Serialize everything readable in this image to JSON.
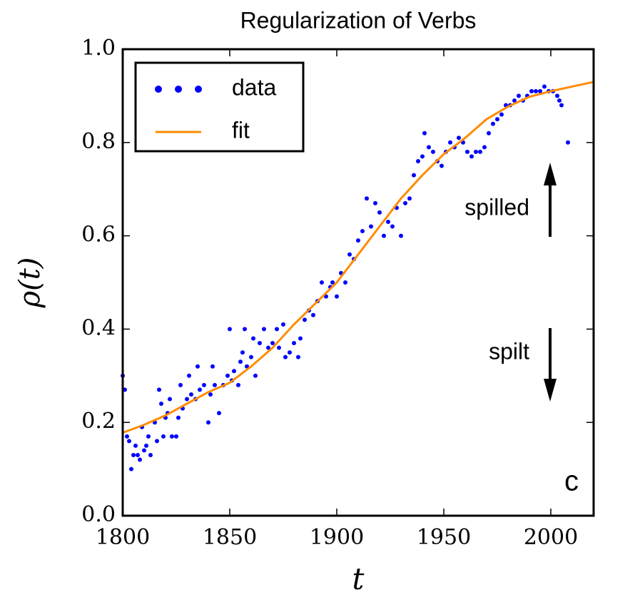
{
  "chart_data": {
    "type": "scatter",
    "title": "Regularization of Verbs",
    "x_label": "t",
    "y_label": "ρ(t)",
    "xlim": [
      1800,
      2020
    ],
    "ylim": [
      0,
      1
    ],
    "xticks": [
      1800,
      1850,
      1900,
      1950,
      2000
    ],
    "yticks": [
      {
        "value": 0,
        "label": "0.0"
      },
      0.2,
      0.4,
      0.6,
      0.8,
      {
        "value": 1,
        "label": "1.0"
      }
    ],
    "legend": "upper left",
    "series": [
      {
        "name": "data",
        "kind": "scatter",
        "color": "#0000ff",
        "x": [
          1800,
          1801,
          1802,
          1803,
          1804,
          1805,
          1806,
          1807,
          1808,
          1809,
          1810,
          1811,
          1812,
          1813,
          1815,
          1816,
          1817,
          1818,
          1819,
          1820,
          1821,
          1822,
          1823,
          1825,
          1826,
          1827,
          1828,
          1830,
          1831,
          1832,
          1834,
          1835,
          1836,
          1838,
          1840,
          1841,
          1842,
          1843,
          1845,
          1847,
          1849,
          1850,
          1851,
          1852,
          1854,
          1855,
          1856,
          1857,
          1858,
          1860,
          1861,
          1862,
          1864,
          1866,
          1868,
          1870,
          1872,
          1873,
          1875,
          1876,
          1878,
          1880,
          1882,
          1883,
          1885,
          1887,
          1889,
          1891,
          1893,
          1895,
          1897,
          1898,
          1900,
          1902,
          1904,
          1906,
          1908,
          1910,
          1912,
          1914,
          1916,
          1918,
          1920,
          1922,
          1924,
          1926,
          1928,
          1930,
          1932,
          1934,
          1936,
          1938,
          1940,
          1941,
          1943,
          1945,
          1947,
          1949,
          1951,
          1953,
          1955,
          1957,
          1959,
          1961,
          1963,
          1965,
          1967,
          1969,
          1971,
          1973,
          1975,
          1977,
          1979,
          1981,
          1983,
          1985,
          1987,
          1989,
          1991,
          1993,
          1995,
          1997,
          1999,
          2001,
          2003,
          2004,
          2005,
          2008
        ],
        "values": [
          0.3,
          0.27,
          0.17,
          0.16,
          0.1,
          0.13,
          0.15,
          0.13,
          0.12,
          0.19,
          0.14,
          0.15,
          0.17,
          0.13,
          0.2,
          0.16,
          0.27,
          0.24,
          0.17,
          0.21,
          0.22,
          0.25,
          0.17,
          0.17,
          0.21,
          0.28,
          0.23,
          0.25,
          0.3,
          0.26,
          0.25,
          0.32,
          0.27,
          0.28,
          0.2,
          0.26,
          0.32,
          0.28,
          0.22,
          0.28,
          0.3,
          0.4,
          0.29,
          0.31,
          0.28,
          0.33,
          0.35,
          0.4,
          0.32,
          0.34,
          0.38,
          0.3,
          0.37,
          0.4,
          0.36,
          0.37,
          0.4,
          0.36,
          0.41,
          0.34,
          0.35,
          0.37,
          0.34,
          0.38,
          0.42,
          0.44,
          0.43,
          0.46,
          0.5,
          0.47,
          0.49,
          0.5,
          0.47,
          0.52,
          0.5,
          0.56,
          0.55,
          0.59,
          0.61,
          0.68,
          0.62,
          0.67,
          0.65,
          0.6,
          0.63,
          0.62,
          0.66,
          0.6,
          0.67,
          0.68,
          0.73,
          0.76,
          0.77,
          0.82,
          0.79,
          0.78,
          0.76,
          0.75,
          0.78,
          0.8,
          0.79,
          0.81,
          0.8,
          0.78,
          0.77,
          0.78,
          0.78,
          0.79,
          0.82,
          0.84,
          0.85,
          0.86,
          0.88,
          0.88,
          0.89,
          0.9,
          0.89,
          0.9,
          0.91,
          0.91,
          0.91,
          0.92,
          0.91,
          0.91,
          0.9,
          0.89,
          0.88,
          0.8
        ]
      },
      {
        "name": "fit",
        "kind": "line",
        "color": "#ff8c00",
        "x": [
          1800,
          1810,
          1820,
          1830,
          1840,
          1850,
          1860,
          1870,
          1880,
          1890,
          1900,
          1910,
          1920,
          1930,
          1940,
          1950,
          1960,
          1970,
          1980,
          1990,
          2000,
          2010,
          2020
        ],
        "values": [
          0.178,
          0.195,
          0.215,
          0.24,
          0.265,
          0.285,
          0.32,
          0.36,
          0.41,
          0.455,
          0.5,
          0.56,
          0.62,
          0.68,
          0.73,
          0.775,
          0.81,
          0.85,
          0.877,
          0.898,
          0.91,
          0.92,
          0.93
        ]
      }
    ],
    "annotations": [
      "spilled",
      "spilt",
      "c"
    ]
  }
}
